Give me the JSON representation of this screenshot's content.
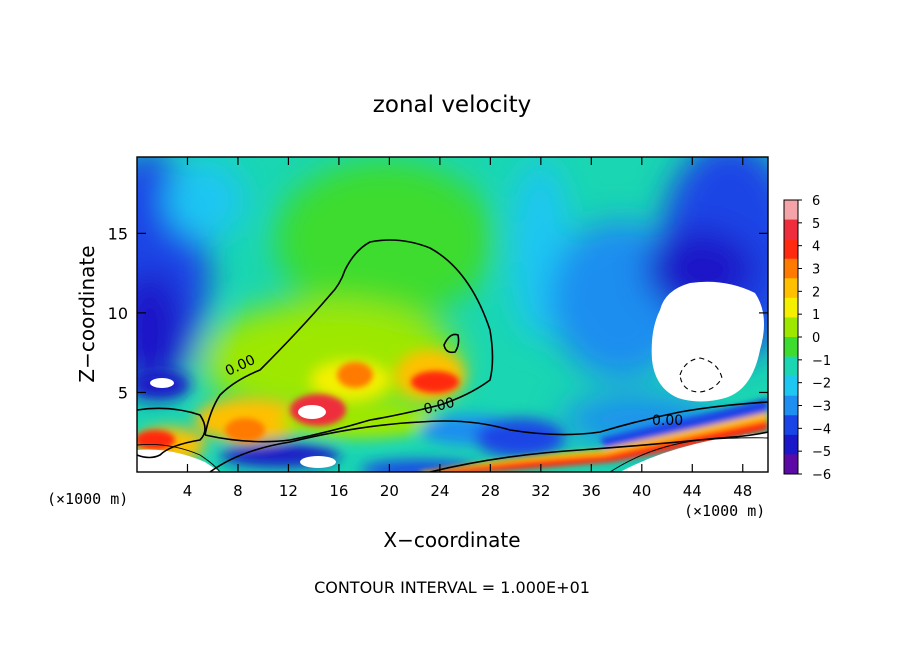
{
  "chart_data": {
    "type": "heatmap",
    "title": "zonal velocity",
    "xlabel": "X−coordinate",
    "ylabel": "Z−coordinate",
    "x_unit_left": "(×1000 m)",
    "x_unit_right": "(×1000 m)",
    "xlim": [
      0,
      50
    ],
    "ylim": [
      0,
      19.8
    ],
    "xticks": [
      4,
      8,
      12,
      16,
      20,
      24,
      28,
      32,
      36,
      40,
      44,
      48
    ],
    "yticks": [
      5,
      10,
      15
    ],
    "contour_label": "0.00",
    "contour_interval_text": "CONTOUR INTERVAL = 1.000E+01",
    "colorbar": {
      "levels": [
        6,
        5,
        4,
        3,
        2,
        1,
        0,
        -1,
        -2,
        -3,
        -4,
        -5,
        -6
      ],
      "labels": [
        "6",
        "5",
        "4",
        "3",
        "2",
        "1",
        "0",
        "−1",
        "−2",
        "−3",
        "−4",
        "−5",
        "−6"
      ],
      "colors": [
        "#f4a3a8",
        "#ee2e3c",
        "#ff2a10",
        "#ff7a00",
        "#ffc000",
        "#f4f000",
        "#9ee800",
        "#3edc2e",
        "#1ad6b2",
        "#1ec6f2",
        "#1e8ef0",
        "#1a44e6",
        "#1a18c8",
        "#5c0aa6"
      ]
    },
    "field_samples": [
      {
        "x": 3,
        "z": 17,
        "u": -3.5
      },
      {
        "x": 6,
        "z": 14,
        "u": -2
      },
      {
        "x": 12,
        "z": 16,
        "u": -0.5
      },
      {
        "x": 20,
        "z": 17,
        "u": 0.5
      },
      {
        "x": 30,
        "z": 17,
        "u": -1
      },
      {
        "x": 36,
        "z": 14,
        "u": -2
      },
      {
        "x": 47,
        "z": 16,
        "u": -4.5
      },
      {
        "x": 2,
        "z": 10,
        "u": -4.5
      },
      {
        "x": 20,
        "z": 10,
        "u": 1.5
      },
      {
        "x": 33,
        "z": 9,
        "u": -2.5
      },
      {
        "x": 40,
        "z": 7,
        "u": -3.5
      },
      {
        "x": 14,
        "z": 4,
        "u": 4
      },
      {
        "x": 24,
        "z": 5,
        "u": 3
      },
      {
        "x": 30,
        "z": 2,
        "u": -3
      },
      {
        "x": 45,
        "z": 2,
        "u": 4
      }
    ]
  }
}
